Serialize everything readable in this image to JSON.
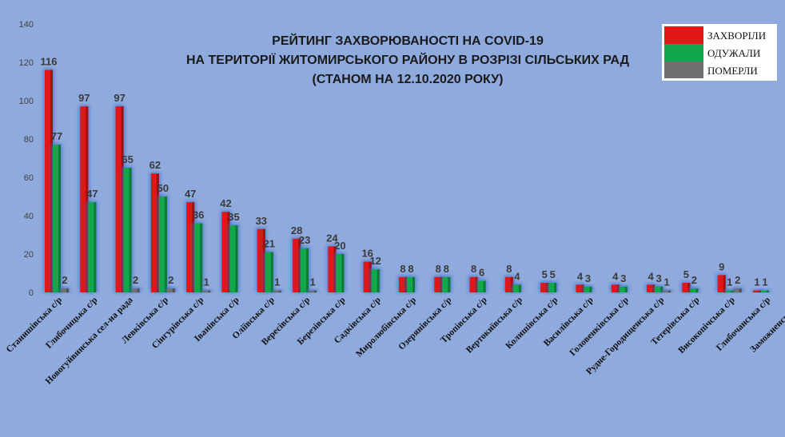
{
  "chart_data": {
    "type": "bar",
    "title": [
      "РЕЙТИНГ ЗАХВОРЮВАНОСТІ НА COVID-19",
      "НА ТЕРИТОРІЇ ЖИТОМИРСЬКОГО РАЙОНУ В РОЗРІЗІ СІЛЬСЬКИХ РАД",
      "(СТАНОМ НА 12.10.2020 РОКУ)"
    ],
    "ylim": [
      0,
      140
    ],
    "yticks": [
      "0",
      "20",
      "40",
      "60",
      "80",
      "100",
      "120",
      "140"
    ],
    "legend_position": "top-right",
    "categories": [
      "Станишівська с/р",
      "Глибочицька с/р",
      "Новогуйвинська сел-на рада",
      "Левківська с/р",
      "Сінгурівська с/р",
      "Іванівська с/р",
      "Оліївська с/р",
      "Вересівська с/р",
      "Березівська с/р",
      "Садківська с/р",
      "Миролюбівська с/р",
      "Озерянівська с/р",
      "Тропівська с/р",
      "Вертокиївська с/р",
      "Колишівська с/р",
      "Василівська с/р",
      "Головенківська с/р",
      "Рудне-Городищенська с/р",
      "Тетерівська с/р",
      "Високопічська с/р",
      "Глибочанська с/р",
      "Заможненська с/р"
    ],
    "series": [
      {
        "name": "ЗАХВОРІЛИ",
        "color": "#e21616",
        "values": [
          116,
          97,
          97,
          62,
          47,
          42,
          33,
          28,
          24,
          16,
          8,
          8,
          8,
          8,
          5,
          4,
          4,
          4,
          5,
          9,
          1,
          1
        ]
      },
      {
        "name": "ОДУЖАЛИ",
        "color": "#10a84a",
        "values": [
          77,
          47,
          65,
          50,
          36,
          35,
          21,
          23,
          20,
          12,
          8,
          8,
          6,
          4,
          5,
          3,
          3,
          3,
          2,
          1,
          1,
          1
        ]
      },
      {
        "name": "ПОМЕРЛИ",
        "color": "#707070",
        "values": [
          2,
          0,
          2,
          2,
          1,
          0,
          1,
          1,
          0,
          0,
          0,
          0,
          0,
          0,
          0,
          0,
          0,
          1,
          0,
          2,
          0,
          0
        ]
      }
    ],
    "data_labels": [
      [
        "116",
        "77",
        "2"
      ],
      [
        "97",
        "47",
        ""
      ],
      [
        "97",
        "65",
        "2"
      ],
      [
        "62",
        "50",
        "2"
      ],
      [
        "47",
        "36",
        "1"
      ],
      [
        "42",
        "35",
        ""
      ],
      [
        "33",
        "21",
        "1"
      ],
      [
        "28",
        "23",
        "1"
      ],
      [
        "24",
        "20",
        ""
      ],
      [
        "16",
        "12",
        ""
      ],
      [
        "8",
        "8",
        ""
      ],
      [
        "8",
        "8",
        ""
      ],
      [
        "8",
        "6",
        ""
      ],
      [
        "8",
        "4",
        ""
      ],
      [
        "5",
        "5",
        ""
      ],
      [
        "4",
        "3",
        ""
      ],
      [
        "4",
        "3",
        ""
      ],
      [
        "4",
        "3",
        "1"
      ],
      [
        "5",
        "2",
        ""
      ],
      [
        "9",
        "1",
        "2"
      ],
      [
        "1",
        "1",
        ""
      ],
      [
        "1",
        "1",
        ""
      ]
    ]
  }
}
